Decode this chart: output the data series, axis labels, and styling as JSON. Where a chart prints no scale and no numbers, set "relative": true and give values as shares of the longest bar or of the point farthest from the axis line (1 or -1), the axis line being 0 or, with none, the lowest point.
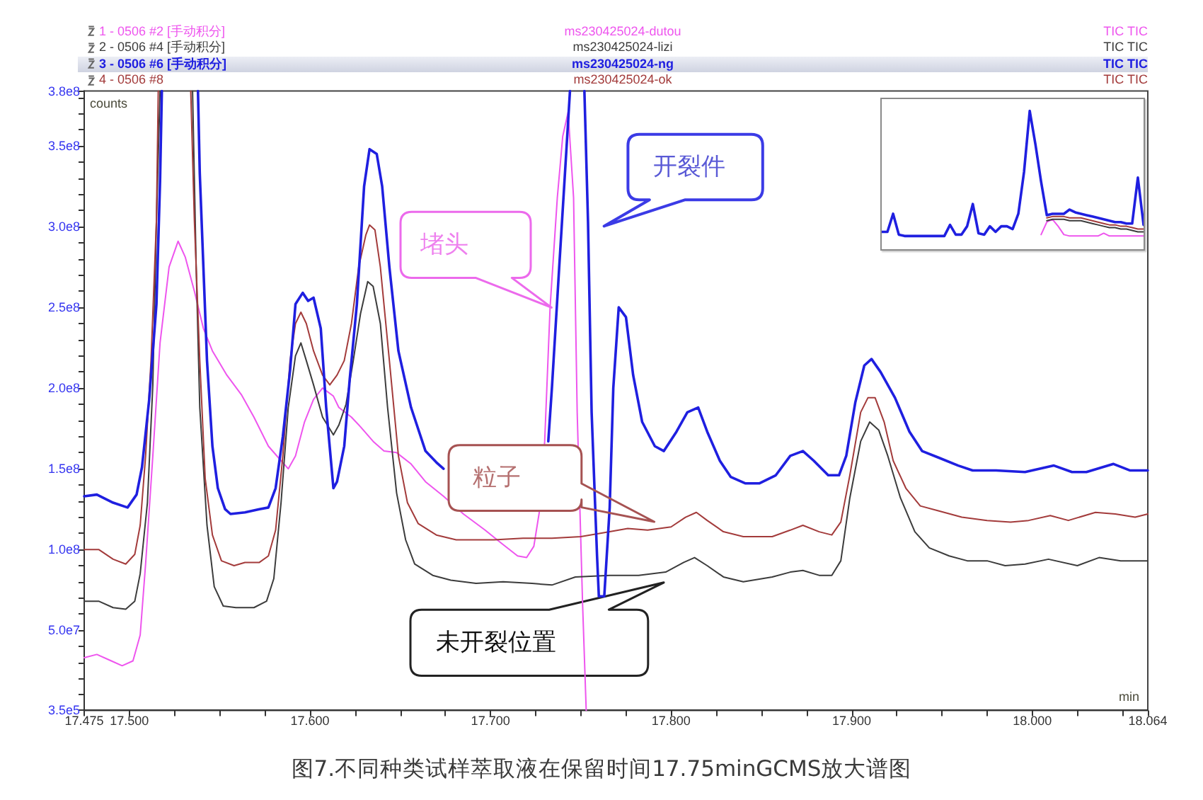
{
  "chart_data": [
    {
      "type": "line",
      "title": "图7.不同种类试样萃取液在保留时间17.75minGCMS放大谱图",
      "xlabel": "min",
      "ylabel": "counts",
      "xlim": [
        17.475,
        18.064
      ],
      "xticks": [
        17.475,
        {
          "value": 17.5,
          "label": "17.500"
        },
        {
          "value": 17.525,
          "label": null
        },
        {
          "value": 17.55,
          "label": null
        },
        {
          "value": 17.575,
          "label": null
        },
        {
          "value": 17.6,
          "label": "17.600"
        },
        {
          "value": 17.625,
          "label": null
        },
        {
          "value": 17.65,
          "label": null
        },
        {
          "value": 17.675,
          "label": null
        },
        {
          "value": 17.7,
          "label": "17.700"
        },
        {
          "value": 17.725,
          "label": null
        },
        {
          "value": 17.75,
          "label": null
        },
        {
          "value": 17.775,
          "label": null
        },
        {
          "value": 17.8,
          "label": "17.800"
        },
        {
          "value": 17.825,
          "label": null
        },
        {
          "value": 17.85,
          "label": null
        },
        {
          "value": 17.875,
          "label": null
        },
        {
          "value": 17.9,
          "label": "17.900"
        },
        {
          "value": 17.925,
          "label": null
        },
        {
          "value": 17.95,
          "label": null
        },
        {
          "value": 17.975,
          "label": null
        },
        {
          "value": 18,
          "label": "18.000"
        },
        {
          "value": 18.025,
          "label": null
        },
        {
          "value": 18.05,
          "label": null
        },
        18.064
      ],
      "ylim": [
        350000,
        384000000.0
      ],
      "yticks": [
        {
          "value": 350000,
          "label": "3.5e5"
        },
        {
          "value": 10000000.0,
          "label": null
        },
        {
          "value": 20000000.0,
          "label": null
        },
        {
          "value": 30000000.0,
          "label": null
        },
        {
          "value": 40000000.0,
          "label": null
        },
        {
          "value": 50000000.0,
          "label": "5.0e7"
        },
        {
          "value": 60000000.0,
          "label": null
        },
        {
          "value": 70000000.0,
          "label": null
        },
        {
          "value": 80000000.0,
          "label": null
        },
        {
          "value": 90000000.0,
          "label": null
        },
        {
          "value": 100000000.0,
          "label": "1.0e8"
        },
        {
          "value": 110000000.0,
          "label": null
        },
        {
          "value": 120000000.0,
          "label": null
        },
        {
          "value": 130000000.0,
          "label": null
        },
        {
          "value": 140000000.0,
          "label": null
        },
        {
          "value": 150000000.0,
          "label": "1.5e8"
        },
        {
          "value": 160000000.0,
          "label": null
        },
        {
          "value": 170000000.0,
          "label": null
        },
        {
          "value": 180000000.0,
          "label": null
        },
        {
          "value": 190000000.0,
          "label": null
        },
        {
          "value": 200000000.0,
          "label": "2.0e8"
        },
        {
          "value": 210000000.0,
          "label": null
        },
        {
          "value": 220000000.0,
          "label": null
        },
        {
          "value": 230000000.0,
          "label": null
        },
        {
          "value": 240000000.0,
          "label": null
        },
        {
          "value": 250000000.0,
          "label": "2.5e8"
        },
        {
          "value": 260000000.0,
          "label": null
        },
        {
          "value": 270000000.0,
          "label": null
        },
        {
          "value": 280000000.0,
          "label": null
        },
        {
          "value": 290000000.0,
          "label": null
        },
        {
          "value": 300000000.0,
          "label": "3.0e8"
        },
        {
          "value": 310000000.0,
          "label": null
        },
        {
          "value": 320000000.0,
          "label": null
        },
        {
          "value": 330000000.0,
          "label": null
        },
        {
          "value": 340000000.0,
          "label": null
        },
        {
          "value": 350000000.0,
          "label": "3.5e8"
        },
        {
          "value": 360000000.0,
          "label": null
        },
        {
          "value": 370000000.0,
          "label": null
        },
        {
          "value": 380000000.0,
          "label": null
        },
        {
          "value": 384000000.0,
          "label": "3.8e8"
        }
      ],
      "series": [
        {
          "name": "1 - 0506 #2 [手动积分]\tms230425024-dutou\tTIC TIC",
          "color": "#ee55ee",
          "x": [
            17.475,
            17.482,
            17.49,
            17.496,
            17.502,
            17.506,
            17.509,
            17.513,
            17.517,
            17.522,
            17.527,
            17.531,
            17.536,
            17.541,
            17.546,
            17.554,
            17.562,
            17.569,
            17.577,
            17.584,
            17.588,
            17.592,
            17.597,
            17.602,
            17.607,
            17.613,
            17.616,
            17.623,
            17.628,
            17.635,
            17.641,
            17.648,
            17.656,
            17.664,
            17.674,
            17.685,
            17.697,
            17.707,
            17.715,
            17.72,
            17.724,
            17.727,
            17.73,
            17.733,
            17.737,
            17.74,
            17.743,
            17.746,
            17.748,
            17.751,
            17.753
          ],
          "values": [
            33000000.0,
            35000000.0,
            31000000.0,
            28000000.0,
            31000000.0,
            47000000.0,
            91000000.0,
            158000000.0,
            228000000.0,
            275000000.0,
            291000000.0,
            281000000.0,
            260000000.0,
            237000000.0,
            223000000.0,
            208000000.0,
            196000000.0,
            182000000.0,
            164000000.0,
            155000000.0,
            150000000.0,
            158000000.0,
            179000000.0,
            193000000.0,
            200000000.0,
            195000000.0,
            188000000.0,
            182000000.0,
            176000000.0,
            167000000.0,
            161000000.0,
            160000000.0,
            153000000.0,
            142000000.0,
            133000000.0,
            122000000.0,
            112000000.0,
            103000000.0,
            96000000.0,
            95000000.0,
            102000000.0,
            123000000.0,
            167000000.0,
            250000000.0,
            318000000.0,
            356000000.0,
            371000000.0,
            318000000.0,
            185000000.0,
            66000000.0,
            350000
          ]
        },
        {
          "name": "2 - 0506 #4 [手动积分]\tms230425024-lizi\tTIC TIC",
          "color": "#3c3c3c",
          "x": [
            17.475,
            17.483,
            17.491,
            17.498,
            17.503,
            17.506,
            17.51,
            17.513,
            17.515,
            17.517,
            17.526,
            17.535,
            17.537,
            17.539,
            17.543,
            17.547,
            17.552,
            17.559,
            17.569,
            17.576,
            17.58,
            17.584,
            17.588,
            17.592,
            17.595,
            17.598,
            17.602,
            17.607,
            17.613,
            17.616,
            17.62,
            17.624,
            17.628,
            17.632,
            17.635,
            17.639,
            17.643,
            17.648,
            17.653,
            17.658,
            17.668,
            17.678,
            17.692,
            17.707,
            17.723,
            17.734,
            17.747,
            17.766,
            17.782,
            17.797,
            17.807,
            17.813,
            17.82,
            17.829,
            17.84,
            17.856,
            17.866,
            17.873,
            17.882,
            17.889,
            17.894,
            17.899,
            17.905,
            17.91,
            17.915,
            17.92,
            17.927,
            17.935,
            17.943,
            17.954,
            17.964,
            17.975,
            17.985,
            17.996,
            18.009,
            18.025,
            18.037,
            18.049,
            18.064
          ],
          "values": [
            68000000.0,
            68000000.0,
            64000000.0,
            63000000.0,
            68000000.0,
            85000000.0,
            129000000.0,
            202000000.0,
            304000000.0,
            384000000.0,
            null,
            384000000.0,
            275000000.0,
            188000000.0,
            115000000.0,
            77000000.0,
            65000000.0,
            64000000.0,
            64000000.0,
            68000000.0,
            82000000.0,
            129000000.0,
            188000000.0,
            220000000.0,
            228000000.0,
            217000000.0,
            202000000.0,
            182000000.0,
            171000000.0,
            177000000.0,
            190000000.0,
            217000000.0,
            246000000.0,
            266000000.0,
            263000000.0,
            240000000.0,
            188000000.0,
            135000000.0,
            106000000.0,
            91000000.0,
            84000000.0,
            81000000.0,
            79000000.0,
            80000000.0,
            79000000.0,
            78000000.0,
            83000000.0,
            84000000.0,
            84000000.0,
            86000000.0,
            92000000.0,
            95000000.0,
            90000000.0,
            83000000.0,
            80000000.0,
            83000000.0,
            86000000.0,
            87000000.0,
            84000000.0,
            84000000.0,
            93000000.0,
            132000000.0,
            167000000.0,
            179000000.0,
            174000000.0,
            158000000.0,
            132000000.0,
            111000000.0,
            101000000.0,
            96000000.0,
            93000000.0,
            93000000.0,
            90000000.0,
            91000000.0,
            94000000.0,
            90000000.0,
            95000000.0,
            93000000.0,
            93000000.0
          ]
        },
        {
          "name": "3 - 0506 #6 [手动积分]\tms230425024-ng\tTIC TIC",
          "color": "#1f1fe0",
          "x": [
            17.475,
            17.482,
            17.491,
            17.499,
            17.504,
            17.507,
            17.511,
            17.515,
            17.517,
            17.518,
            17.528,
            17.538,
            17.539,
            17.541,
            17.543,
            17.546,
            17.549,
            17.553,
            17.556,
            17.564,
            17.572,
            17.577,
            17.581,
            17.585,
            17.589,
            17.592,
            17.596,
            17.599,
            17.602,
            17.606,
            17.609,
            17.613,
            17.615,
            17.619,
            17.622,
            17.626,
            17.63,
            17.633,
            17.637,
            17.64,
            17.644,
            17.649,
            17.656,
            17.664,
            17.67,
            17.674,
            17.7,
            17.732,
            17.734,
            17.738,
            17.742,
            17.744,
            17.748,
            17.752,
            17.754,
            17.756,
            17.759,
            17.76,
            17.763,
            17.766,
            17.768,
            17.771,
            17.775,
            17.779,
            17.784,
            17.791,
            17.796,
            17.803,
            17.809,
            17.815,
            17.82,
            17.827,
            17.833,
            17.841,
            17.849,
            17.858,
            17.866,
            17.873,
            17.879,
            17.887,
            17.893,
            17.897,
            17.902,
            17.907,
            17.911,
            17.916,
            17.924,
            17.932,
            17.939,
            17.948,
            17.959,
            17.967,
            17.98,
            17.996,
            18.012,
            18.022,
            18.03,
            18.045,
            18.054,
            18.064
          ],
          "values": [
            133000000.0,
            134000000.0,
            129000000.0,
            126000000.0,
            134000000.0,
            151000000.0,
            193000000.0,
            252000000.0,
            328000000.0,
            384000000.0,
            null,
            384000000.0,
            333000000.0,
            275000000.0,
            217000000.0,
            164000000.0,
            138000000.0,
            125000000.0,
            122000000.0,
            123000000.0,
            125000000.0,
            126000000.0,
            138000000.0,
            170000000.0,
            211000000.0,
            252000000.0,
            259000000.0,
            254000000.0,
            256000000.0,
            237000000.0,
            188000000.0,
            138000000.0,
            142000000.0,
            164000000.0,
            205000000.0,
            252000000.0,
            325000000.0,
            348000000.0,
            345000000.0,
            325000000.0,
            275000000.0,
            223000000.0,
            188000000.0,
            161000000.0,
            154000000.0,
            150000000.0,
            null,
            167000000.0,
            200000000.0,
            274000000.0,
            347000000.0,
            384000000.0,
            null,
            384000000.0,
            303000000.0,
            185000000.0,
            96000000.0,
            71000000.0,
            71000000.0,
            126000000.0,
            200000000.0,
            250000000.0,
            244000000.0,
            208000000.0,
            179000000.0,
            164000000.0,
            161000000.0,
            173000000.0,
            185000000.0,
            188000000.0,
            173000000.0,
            155000000.0,
            145000000.0,
            141000000.0,
            141000000.0,
            146000000.0,
            158000000.0,
            161000000.0,
            155000000.0,
            146000000.0,
            146000000.0,
            158000000.0,
            191000000.0,
            214000000.0,
            218000000.0,
            210000000.0,
            194000000.0,
            173000000.0,
            161000000.0,
            157000000.0,
            152000000.0,
            149000000.0,
            149000000.0,
            148000000.0,
            152000000.0,
            148000000.0,
            148000000.0,
            153000000.0,
            149000000.0,
            149000000.0
          ]
        },
        {
          "name": "4 - 0506 #8\tms230425024-ok\tTIC TIC",
          "color": "#a33b3b",
          "x": [
            17.475,
            17.483,
            17.491,
            17.498,
            17.503,
            17.506,
            17.509,
            17.512,
            17.515,
            17.516,
            17.526,
            17.534,
            17.536,
            17.539,
            17.542,
            17.546,
            17.551,
            17.558,
            17.564,
            17.572,
            17.577,
            17.581,
            17.585,
            17.589,
            17.592,
            17.595,
            17.598,
            17.602,
            17.607,
            17.611,
            17.615,
            17.619,
            17.623,
            17.627,
            17.631,
            17.633,
            17.636,
            17.639,
            17.644,
            17.649,
            17.654,
            17.66,
            17.67,
            17.681,
            17.692,
            17.702,
            17.718,
            17.734,
            17.75,
            17.766,
            17.776,
            17.787,
            17.8,
            17.808,
            17.814,
            17.82,
            17.829,
            17.84,
            17.856,
            17.866,
            17.873,
            17.882,
            17.889,
            17.894,
            17.899,
            17.905,
            17.909,
            17.913,
            17.918,
            17.923,
            17.93,
            17.938,
            17.948,
            17.961,
            17.975,
            17.988,
            17.998,
            18.01,
            18.02,
            18.035,
            18.046,
            18.057,
            18.064
          ],
          "values": [
            100000000.0,
            100000000.0,
            94000000.0,
            91000000.0,
            97000000.0,
            115000000.0,
            158000000.0,
            217000000.0,
            304000000.0,
            384000000.0,
            null,
            384000000.0,
            304000000.0,
            217000000.0,
            144000000.0,
            109000000.0,
            93000000.0,
            90000000.0,
            92000000.0,
            92000000.0,
            96000000.0,
            112000000.0,
            158000000.0,
            217000000.0,
            240000000.0,
            247000000.0,
            240000000.0,
            223000000.0,
            208000000.0,
            202000000.0,
            208000000.0,
            217000000.0,
            240000000.0,
            275000000.0,
            295000000.0,
            301000000.0,
            298000000.0,
            275000000.0,
            217000000.0,
            158000000.0,
            129000000.0,
            116000000.0,
            109000000.0,
            106000000.0,
            106000000.0,
            106000000.0,
            107000000.0,
            107000000.0,
            108000000.0,
            111000000.0,
            113000000.0,
            112000000.0,
            114000000.0,
            120000000.0,
            123000000.0,
            118000000.0,
            111000000.0,
            108000000.0,
            108000000.0,
            112000000.0,
            115000000.0,
            111000000.0,
            109000000.0,
            117000000.0,
            146000000.0,
            185000000.0,
            194000000.0,
            194000000.0,
            179000000.0,
            155000000.0,
            138000000.0,
            127000000.0,
            124000000.0,
            120000000.0,
            118000000.0,
            117000000.0,
            118000000.0,
            121000000.0,
            118000000.0,
            123000000.0,
            122000000.0,
            120000000.0,
            122000000.0
          ]
        }
      ],
      "annotations": [
        "开裂件",
        "堵头",
        "粒子",
        "未开裂位置"
      ]
    },
    {
      "type": "line",
      "relative": true,
      "categories": [
        null,
        null,
        null,
        null,
        null,
        null,
        null,
        null,
        null,
        null,
        null,
        null,
        null,
        null,
        null,
        null,
        null,
        null,
        null,
        null,
        null,
        null,
        null,
        null,
        null,
        null,
        null,
        null,
        null,
        null,
        null,
        null,
        null,
        null,
        null,
        null,
        null,
        null,
        null,
        null,
        null,
        null,
        null,
        null,
        null,
        null,
        null
      ],
      "series": [
        {
          "color": "#ee55ee",
          "values": [
            null,
            null,
            null,
            null,
            null,
            null,
            null,
            null,
            null,
            null,
            null,
            null,
            null,
            null,
            null,
            null,
            null,
            null,
            null,
            null,
            null,
            null,
            null,
            null,
            null,
            null,
            null,
            null,
            0.11,
            0.2,
            0.22,
            0.17,
            0.11,
            0.1,
            0.1,
            0.1,
            0.1,
            0.1,
            0.1,
            0.12,
            0.1,
            0.1,
            0.1,
            0.1,
            0.1,
            0.1,
            0.1
          ]
        },
        {
          "color": "#3c3c3c",
          "values": [
            null,
            null,
            null,
            null,
            null,
            null,
            null,
            null,
            null,
            null,
            null,
            null,
            null,
            null,
            null,
            null,
            null,
            null,
            null,
            null,
            null,
            null,
            null,
            null,
            null,
            null,
            null,
            null,
            null,
            0.21,
            0.22,
            0.22,
            0.22,
            0.21,
            0.21,
            0.21,
            0.2,
            0.19,
            0.18,
            0.17,
            0.16,
            0.16,
            0.15,
            0.15,
            0.14,
            0.13,
            0.13
          ]
        },
        {
          "color": "#1f1fe0",
          "values": [
            0.13,
            0.13,
            0.26,
            0.11,
            0.1,
            0.1,
            0.1,
            0.1,
            0.1,
            0.1,
            0.1,
            0.1,
            0.18,
            0.11,
            0.11,
            0.17,
            0.33,
            0.12,
            0.11,
            0.17,
            0.13,
            0.17,
            0.17,
            0.15,
            0.26,
            0.56,
            1,
            0.76,
            0.49,
            0.25,
            0.26,
            0.26,
            0.26,
            0.29,
            0.27,
            0.26,
            0.25,
            0.24,
            0.23,
            0.22,
            0.21,
            0.2,
            0.2,
            0.19,
            0.19,
            0.52,
            0.18
          ]
        },
        {
          "color": "#a33b3b",
          "values": [
            null,
            null,
            null,
            null,
            null,
            null,
            null,
            null,
            null,
            null,
            null,
            null,
            null,
            null,
            null,
            null,
            null,
            null,
            null,
            null,
            null,
            null,
            null,
            null,
            null,
            null,
            null,
            null,
            null,
            0.23,
            0.24,
            0.24,
            0.24,
            0.23,
            0.23,
            0.23,
            0.22,
            0.21,
            0.2,
            0.19,
            0.18,
            0.18,
            0.17,
            0.17,
            0.16,
            0.15,
            0.15
          ]
        }
      ]
    }
  ]
}
